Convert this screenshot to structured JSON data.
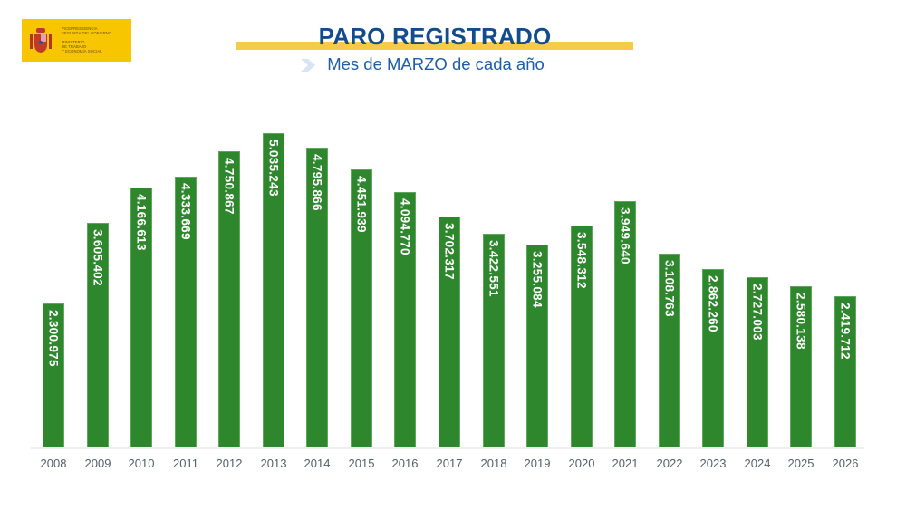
{
  "header": {
    "logo": {
      "line1": "Vicepresidencia",
      "line2": "Segunda del Gobierno",
      "line3": "Ministerio",
      "line4": "de Trabajo",
      "line5": "y Economía Social"
    },
    "title": "PARO REGISTRADO",
    "subtitle": "Mes de MARZO de cada año"
  },
  "colors": {
    "bar": "#2e862d",
    "title": "#134c8c",
    "subtitle": "#1d5ea7",
    "band": "#f6cb4a",
    "logo_bg": "#f7c600"
  },
  "chart_data": {
    "type": "bar",
    "title": "PARO REGISTRADO",
    "subtitle": "Mes de MARZO de cada año",
    "xlabel": "",
    "ylabel": "",
    "grid": false,
    "legend": null,
    "ylim": [
      0,
      5100000
    ],
    "categories": [
      "2008",
      "2009",
      "2010",
      "2011",
      "2012",
      "2013",
      "2014",
      "2015",
      "2016",
      "2017",
      "2018",
      "2019",
      "2020",
      "2021",
      "2022",
      "2023",
      "2024",
      "2025",
      "2026"
    ],
    "values": [
      2300975,
      3605402,
      4166613,
      4333669,
      4750867,
      5035243,
      4795866,
      4451939,
      4094770,
      3702317,
      3422551,
      3255084,
      3548312,
      3949640,
      3108763,
      2862260,
      2727003,
      2580138,
      2419712
    ],
    "labels": [
      "2.300.975",
      "3.605.402",
      "4.166.613",
      "4.333.669",
      "4.750.867",
      "5.035.243",
      "4.795.866",
      "4.451.939",
      "4.094.770",
      "3.702.317",
      "3.422.551",
      "3.255.084",
      "3.548.312",
      "3.949.640",
      "3.108.763",
      "2.862.260",
      "2.727.003",
      "2.580.138",
      "2.419.712"
    ]
  }
}
